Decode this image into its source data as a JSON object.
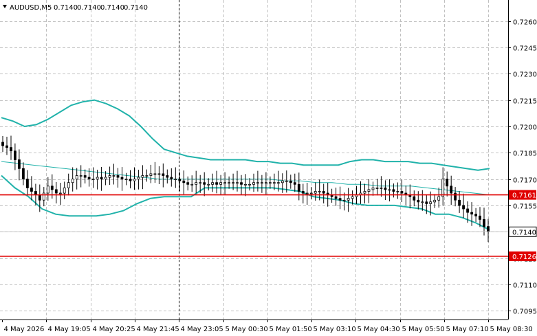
{
  "header": {
    "symbol": "AUDUSD,M5",
    "open": "0.7140",
    "high": "0.7140",
    "low": "0.7140",
    "close": "0.7140"
  },
  "chart_data": {
    "type": "candlestick",
    "title": "AUDUSD,M5 0.7140 0.7140 0.7140 0.7140",
    "ylim": [
      0.709,
      0.7272
    ],
    "y_ticks": [
      "0.7260",
      "0.7245",
      "0.7230",
      "0.7215",
      "0.7200",
      "0.7185",
      "0.7170",
      "0.7155",
      "0.7140",
      "0.7125",
      "0.7110",
      "0.7095"
    ],
    "x_ticks": [
      "4 May 2026",
      "4 May 19:05",
      "4 May 20:25",
      "4 May 21:45",
      "4 May 23:05",
      "5 May 00:30",
      "5 May 01:50",
      "5 May 03:10",
      "5 May 04:30",
      "5 May 05:50",
      "5 May 07:10",
      "5 May 08:30"
    ],
    "grid": true,
    "levels": [
      {
        "name": "level-upper",
        "value": 0.7161,
        "label": "0.7161",
        "color": "#e00000"
      },
      {
        "name": "level-lower",
        "value": 0.7126,
        "label": "0.7126",
        "color": "#e00000"
      }
    ],
    "current_price": {
      "value": 0.714,
      "label": "0.7140"
    },
    "period_separator_index": 4,
    "close_series": [
      0.7189,
      0.7188,
      0.7186,
      0.7181,
      0.7176,
      0.717,
      0.7165,
      0.7163,
      0.7161,
      0.7158,
      0.7162,
      0.7166,
      0.7164,
      0.7162,
      0.7162,
      0.7165,
      0.7168,
      0.717,
      0.7172,
      0.7172,
      0.7171,
      0.717,
      0.717,
      0.7171,
      0.717,
      0.7171,
      0.7172,
      0.7172,
      0.7171,
      0.717,
      0.717,
      0.7169,
      0.717,
      0.7171,
      0.7172,
      0.7172,
      0.7173,
      0.7173,
      0.7173,
      0.7172,
      0.7171,
      0.717,
      0.717,
      0.7169,
      0.7168,
      0.7167,
      0.7167,
      0.7168,
      0.7168,
      0.7167,
      0.7167,
      0.7168,
      0.7167,
      0.7168,
      0.7168,
      0.7168,
      0.7168,
      0.7168,
      0.7167,
      0.7167,
      0.7167,
      0.7168,
      0.7168,
      0.7168,
      0.7168,
      0.7168,
      0.7168,
      0.7168,
      0.7169,
      0.7169,
      0.7168,
      0.7167,
      0.7163,
      0.7162,
      0.7162,
      0.7162,
      0.7163,
      0.7163,
      0.7162,
      0.7161,
      0.716,
      0.7159,
      0.7158,
      0.7158,
      0.7159,
      0.716,
      0.7161,
      0.7162,
      0.7163,
      0.7164,
      0.7165,
      0.7165,
      0.7165,
      0.7164,
      0.7164,
      0.7163,
      0.7163,
      0.7162,
      0.7161,
      0.716,
      0.7158,
      0.7157,
      0.7157,
      0.7156,
      0.7157,
      0.7158,
      0.716,
      0.717,
      0.7166,
      0.7162,
      0.7158,
      0.7155,
      0.7153,
      0.7151,
      0.715,
      0.7149,
      0.7147,
      0.7143,
      0.714
    ],
    "bollinger_upper": [
      0.7205,
      0.7203,
      0.72,
      0.7201,
      0.7204,
      0.7208,
      0.7212,
      0.7214,
      0.7215,
      0.7213,
      0.721,
      0.7206,
      0.72,
      0.7193,
      0.7187,
      0.7185,
      0.7183,
      0.7182,
      0.7181,
      0.7181,
      0.7181,
      0.7181,
      0.718,
      0.718,
      0.7179,
      0.7179,
      0.7178,
      0.7178,
      0.7178,
      0.7178,
      0.718,
      0.7181,
      0.7181,
      0.718,
      0.718,
      0.718,
      0.7179,
      0.7179,
      0.7178,
      0.7177,
      0.7176,
      0.7175,
      0.7176
    ],
    "bollinger_middle": [
      0.718,
      0.7179,
      0.7178,
      0.7177,
      0.7176,
      0.7175,
      0.7174,
      0.7173,
      0.7172,
      0.7171,
      0.717,
      0.717,
      0.717,
      0.717,
      0.717,
      0.717,
      0.717,
      0.717,
      0.7169,
      0.7169,
      0.7168,
      0.7168,
      0.7167,
      0.7167,
      0.7166,
      0.7166,
      0.7166,
      0.7165,
      0.7164,
      0.7163,
      0.7162,
      0.7161
    ],
    "bollinger_lower": [
      0.7172,
      0.7165,
      0.716,
      0.7153,
      0.715,
      0.7149,
      0.7149,
      0.7149,
      0.715,
      0.7152,
      0.7156,
      0.7159,
      0.716,
      0.716,
      0.716,
      0.7165,
      0.7165,
      0.7165,
      0.7165,
      0.7165,
      0.7165,
      0.7164,
      0.7163,
      0.716,
      0.7159,
      0.7158,
      0.7156,
      0.7155,
      0.7155,
      0.7155,
      0.7154,
      0.7153,
      0.715,
      0.715,
      0.7148,
      0.7145,
      0.7141
    ],
    "colors": {
      "bollinger": "#20b2aa",
      "middle": "#20b2aa",
      "candle": "#000000",
      "grid": "#c0c0c0"
    }
  }
}
